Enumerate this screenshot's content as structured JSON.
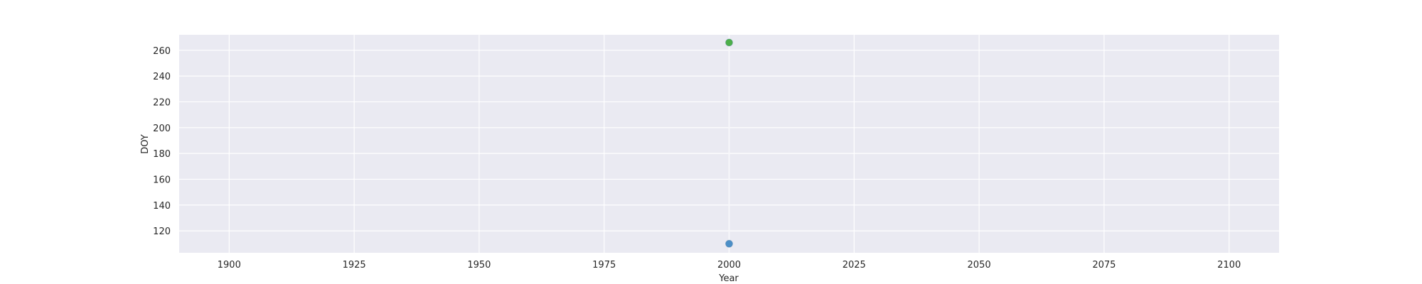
{
  "chart_data": {
    "type": "scatter",
    "title": "",
    "xlabel": "Year",
    "ylabel": "DOY",
    "xlim": [
      1890,
      2110
    ],
    "ylim": [
      103,
      272
    ],
    "x_ticks": [
      1900,
      1925,
      1950,
      1975,
      2000,
      2025,
      2050,
      2075,
      2100
    ],
    "y_ticks": [
      120,
      140,
      160,
      180,
      200,
      220,
      240,
      260
    ],
    "grid": true,
    "legend": "none",
    "background_color": "#eaeaf2",
    "grid_color": "#ffffff",
    "series": [
      {
        "color": "#4c8fc7",
        "points": [
          {
            "x": 2000,
            "y": 110
          }
        ]
      },
      {
        "color": "#4daf4a",
        "points": [
          {
            "x": 2000,
            "y": 266
          }
        ]
      }
    ]
  }
}
